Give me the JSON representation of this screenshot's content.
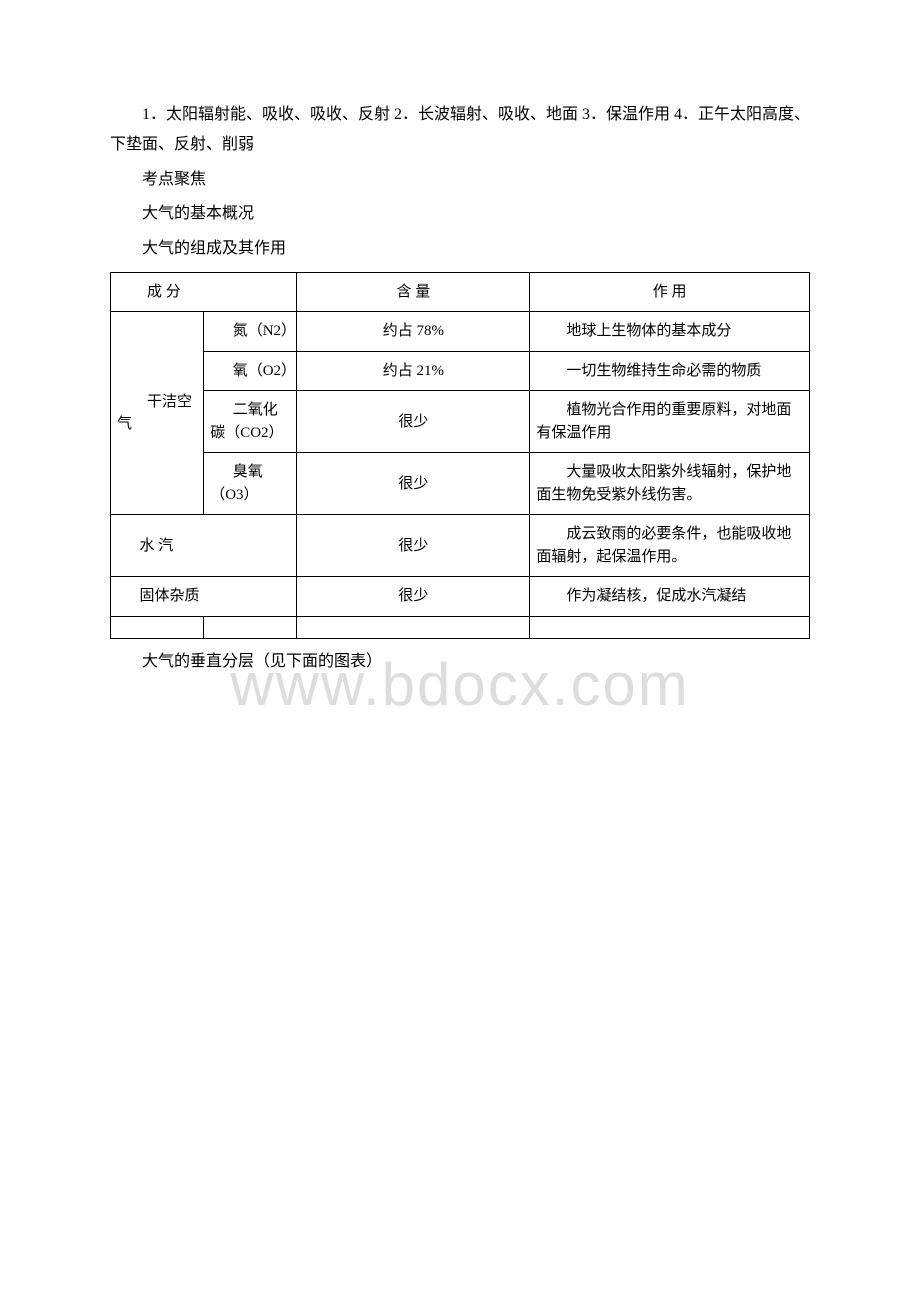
{
  "watermark": "www.bdocx.com",
  "paragraphs": {
    "p1": "1．太阳辐射能、吸收、吸收、反射 2．长波辐射、吸收、地面 3．保温作用 4．正午太阳高度、下垫面、反射、削弱",
    "p2": "考点聚焦",
    "p3": "大气的基本概况",
    "p4": "大气的组成及其作用",
    "p5": "大气的垂直分层（见下面的图表）"
  },
  "table": {
    "headers": {
      "col1": "成 分",
      "col3": "含 量",
      "col4": "作 用"
    },
    "rows": [
      {
        "col1": "干洁空气",
        "col1_rowspan": 4,
        "col2": "氮（N2）",
        "col3": "约占 78%",
        "col4": "地球上生物体的基本成分"
      },
      {
        "col2": "氧（O2）",
        "col3": "约占 21%",
        "col4": "一切生物维持生命必需的物质"
      },
      {
        "col2": "二氧化碳（CO2）",
        "col3": "很少",
        "col4": "植物光合作用的重要原料，对地面有保温作用"
      },
      {
        "col2": "臭氧（O3）",
        "col3": "很少",
        "col4": "大量吸收太阳紫外线辐射，保护地面生物免受紫外线伤害。"
      },
      {
        "col1": "水 汽",
        "col1_colspan": 2,
        "col3": "很少",
        "col4": "成云致雨的必要条件，也能吸收地面辐射，起保温作用。"
      },
      {
        "col1": "固体杂质",
        "col1_colspan": 2,
        "col3": "很少",
        "col4": "作为凝结核，促成水汽凝结"
      }
    ]
  }
}
